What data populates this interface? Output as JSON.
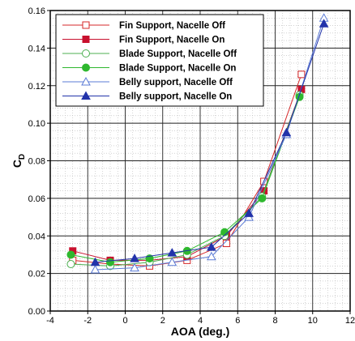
{
  "chart_data": {
    "type": "line",
    "xlabel": "AOA (deg.)",
    "ylabel_main": "C",
    "ylabel_sub": "D",
    "xlim": [
      -4,
      12
    ],
    "ylim": [
      0,
      0.16
    ],
    "xticks": [
      -4,
      -2,
      0,
      2,
      4,
      6,
      8,
      10,
      12
    ],
    "xtick_labels": [
      "-4",
      "-2",
      "0",
      "2",
      "4",
      "6",
      "8",
      "10",
      "12"
    ],
    "yticks": [
      0,
      0.02,
      0.04,
      0.06,
      0.08,
      0.1,
      0.12,
      0.14,
      0.16
    ],
    "ytick_labels": [
      "0.00",
      "0.02",
      "0.04",
      "0.06",
      "0.08",
      "0.10",
      "0.12",
      "0.14",
      "0.16"
    ],
    "grid": true,
    "legend_position": "top-left",
    "series": [
      {
        "name": "Fin Support, Nacelle Off",
        "color": "#d62728",
        "marker": "square-open",
        "x": [
          -2.8,
          -0.8,
          1.3,
          3.3,
          5.4,
          7.4,
          9.4
        ],
        "y": [
          0.027,
          0.025,
          0.024,
          0.027,
          0.036,
          0.069,
          0.126
        ]
      },
      {
        "name": "Fin Support, Nacelle On",
        "color": "#c8102e",
        "marker": "square-filled",
        "x": [
          -2.8,
          -0.8,
          1.3,
          3.3,
          5.4,
          7.4,
          9.4
        ],
        "y": [
          0.032,
          0.027,
          0.027,
          0.029,
          0.04,
          0.064,
          0.118
        ]
      },
      {
        "name": "Blade Support, Nacelle Off",
        "color": "#4caf50",
        "marker": "circle-open",
        "x": [
          -2.9,
          -0.8,
          1.3,
          3.3,
          5.3,
          7.3,
          9.3
        ],
        "y": [
          0.025,
          0.024,
          0.026,
          0.03,
          0.04,
          0.061,
          0.115
        ]
      },
      {
        "name": "Blade Support, Nacelle On",
        "color": "#2eb82e",
        "marker": "circle-filled",
        "x": [
          -2.9,
          -0.8,
          1.3,
          3.3,
          5.3,
          7.3,
          9.3
        ],
        "y": [
          0.03,
          0.026,
          0.028,
          0.032,
          0.042,
          0.06,
          0.114
        ]
      },
      {
        "name": "Belly support, Nacelle Off",
        "color": "#5b7bd5",
        "marker": "triangle-open",
        "x": [
          -1.6,
          0.5,
          2.5,
          4.6,
          6.6,
          8.6,
          10.6
        ],
        "y": [
          0.022,
          0.023,
          0.026,
          0.029,
          0.05,
          0.094,
          0.156
        ]
      },
      {
        "name": "Belly support, Nacelle On",
        "color": "#2233aa",
        "marker": "triangle-filled",
        "x": [
          -1.6,
          0.5,
          2.5,
          4.6,
          6.6,
          8.6,
          10.6
        ],
        "y": [
          0.026,
          0.028,
          0.031,
          0.034,
          0.052,
          0.095,
          0.153
        ]
      }
    ]
  }
}
